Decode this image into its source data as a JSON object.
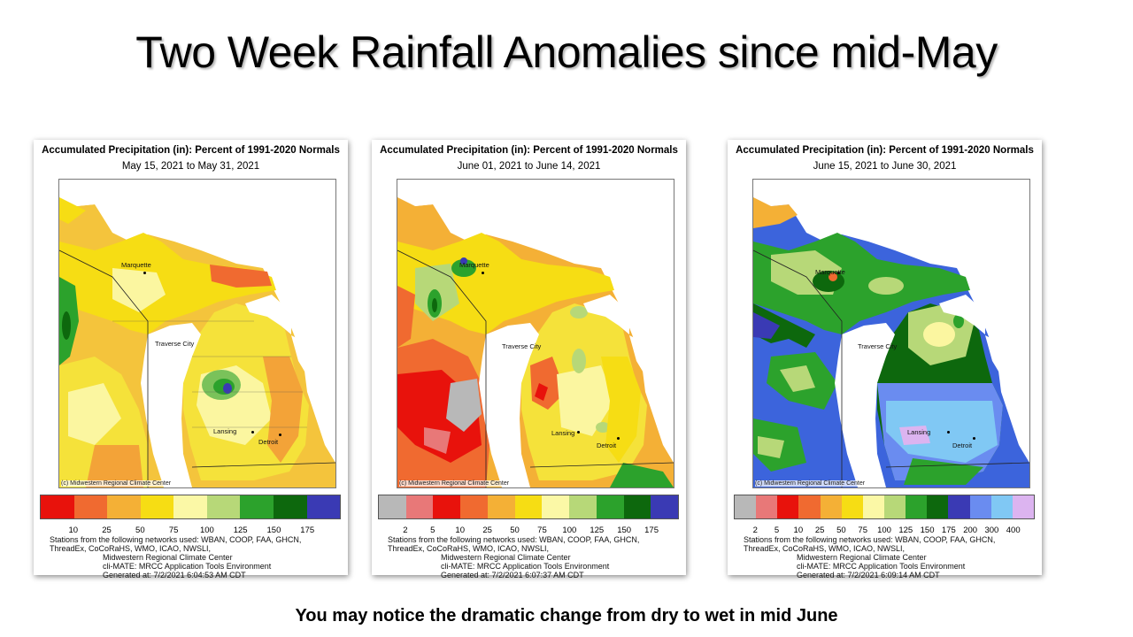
{
  "title": "Two Week Rainfall Anomalies since mid-May",
  "caption": "You may notice the dramatic change from dry to wet in mid June",
  "common": {
    "map_title": "Accumulated Precipitation (in): Percent of 1991-2020 Normals",
    "copyright": "(c) Midwestern Regional Climate Center",
    "cities": {
      "marquette": "Marquette",
      "traverse": "Traverse City",
      "lansing": "Lansing",
      "detroit": "Detroit"
    },
    "foot_networks": "Stations from the following networks used: WBAN, COOP, FAA, GHCN,",
    "foot_networks2": "ThreadEx, CoCoRaHS, WMO, ICAO, NWSLI,",
    "foot_mrcc": "Midwestern Regional Climate Center",
    "foot_climate": "cli-MATE: MRCC Application Tools Environment"
  },
  "panels": [
    {
      "dates": "May 15, 2021 to May 31, 2021",
      "generated": "Generated at: 7/2/2021 6:04:53 AM CDT",
      "legend_colors": [
        "#e8120c",
        "#f06a30",
        "#f4b036",
        "#f6dd14",
        "#fbf8a6",
        "#b7d878",
        "#2ca22c",
        "#0d680d",
        "#3a3ab4"
      ],
      "ticks": [
        "10",
        "25",
        "50",
        "75",
        "100",
        "125",
        "150",
        "175"
      ],
      "background": "#f4c43c",
      "blobs": [
        {
          "color": "#f5e23a"
        },
        {
          "color": "#fbf6a0"
        },
        {
          "color": "#f3a338"
        },
        {
          "color": "#f06a30"
        },
        {
          "color": "#7ac25a"
        },
        {
          "color": "#2ca22c"
        },
        {
          "color": "#3a3ab4"
        }
      ]
    },
    {
      "dates": "June 01, 2021 to June 14, 2021",
      "generated": "Generated at: 7/2/2021 6:07:37 AM CDT",
      "legend_colors": [
        "#b8b8b8",
        "#e87878",
        "#e8120c",
        "#f06a30",
        "#f4b036",
        "#f6dd14",
        "#fbf8a6",
        "#b7d878",
        "#2ca22c",
        "#0d680d",
        "#3a3ab4"
      ],
      "ticks": [
        "2",
        "5",
        "10",
        "25",
        "50",
        "75",
        "100",
        "125",
        "150",
        "175"
      ],
      "background": "#f4b036"
    },
    {
      "dates": "June 15, 2021 to June 30, 2021",
      "generated": "Generated at: 7/2/2021 6:09:14 AM CDT",
      "legend_colors": [
        "#b8b8b8",
        "#e87878",
        "#e8120c",
        "#f06a30",
        "#f4b036",
        "#f6dd14",
        "#fbf8a6",
        "#b7d878",
        "#2ca22c",
        "#0d680d",
        "#3a3ab4",
        "#6a8cf0",
        "#80c8f4",
        "#dcb4f0"
      ],
      "ticks": [
        "2",
        "5",
        "10",
        "25",
        "50",
        "75",
        "100",
        "125",
        "150",
        "175",
        "200",
        "300",
        "400"
      ],
      "background": "#3c64dc"
    }
  ]
}
